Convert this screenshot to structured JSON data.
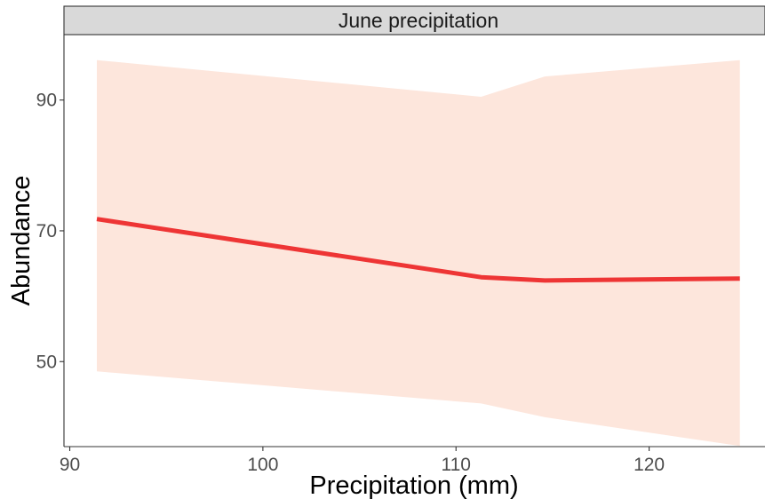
{
  "chart_data": {
    "type": "line",
    "strip_title": "June precipitation",
    "title": "",
    "xlabel": "Precipitation (mm)",
    "ylabel": "Abundance",
    "xlim": [
      89.7,
      126
    ],
    "ylim": [
      37,
      100
    ],
    "x_ticks": [
      90,
      100,
      110,
      120
    ],
    "y_ticks": [
      50,
      70,
      90
    ],
    "grid": false,
    "series": [
      {
        "x": [
          91.4,
          111.3,
          114.6,
          124.7
        ],
        "y": [
          71.8,
          62.9,
          62.4,
          62.7
        ],
        "lower": [
          48.5,
          43.6,
          41.5,
          37.1
        ],
        "upper": [
          96.1,
          90.5,
          93.6,
          96.1
        ]
      }
    ],
    "colors": {
      "line": "#ee3535",
      "ribbon": "#fde6dc",
      "strip_fill": "#d9d9d9",
      "strip_border": "#333333"
    }
  }
}
